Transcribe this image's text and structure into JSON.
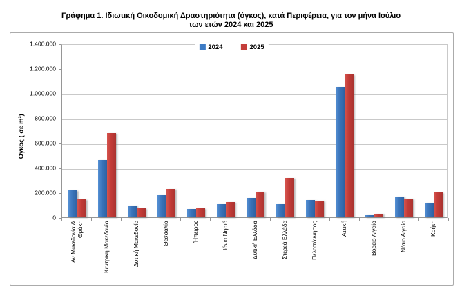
{
  "title": {
    "line1": "Γράφημα 1.  Ιδιωτική Οικοδομική Δραστηριότητα (όγκος), κατά Περιφέρεια, για τον μήνα Ιούλιο",
    "line2": "των ετών 2024 και 2025"
  },
  "chart_data": {
    "type": "bar",
    "title": "Γράφημα 1. Ιδιωτική Οικοδομική Δραστηριότητα (όγκος), κατά Περιφέρεια, για τον μήνα Ιούλιο των ετών 2024 και 2025",
    "ylabel": "Όγκος ( σε m³)",
    "xlabel": "",
    "ylim": [
      0,
      1400000
    ],
    "ytick_step": 200000,
    "ytick_labels": [
      "0",
      "200.000",
      "400.000",
      "600.000",
      "800.000",
      "1.000.000",
      "1.200.000",
      "1.400.000"
    ],
    "grid": "horizontal",
    "legend_position": "top-center",
    "categories": [
      "Αν.Μακεδονία &\nΘράκη",
      "Κεντρική Μακεδονία",
      "Δυτική Μακεδονία",
      "Θεσσαλία",
      "Ήπειρος",
      "Ιόνια Νησιά",
      "Δυτική Ελλάδα",
      "Στερεά Ελλάδα",
      "Πελοπόννησος",
      "Αττική",
      "Βόρειο Αιγαίο",
      "Νότιο Αιγαίο",
      "Κρήτη"
    ],
    "series": [
      {
        "name": "2024",
        "color": "#3c7bc5",
        "values": [
          215000,
          460000,
          95000,
          180000,
          65000,
          105000,
          155000,
          105000,
          140000,
          1050000,
          15000,
          165000,
          115000
        ]
      },
      {
        "name": "2025",
        "color": "#c43e3a",
        "values": [
          145000,
          680000,
          70000,
          225000,
          70000,
          120000,
          205000,
          315000,
          135000,
          1150000,
          25000,
          150000,
          200000
        ]
      }
    ]
  }
}
